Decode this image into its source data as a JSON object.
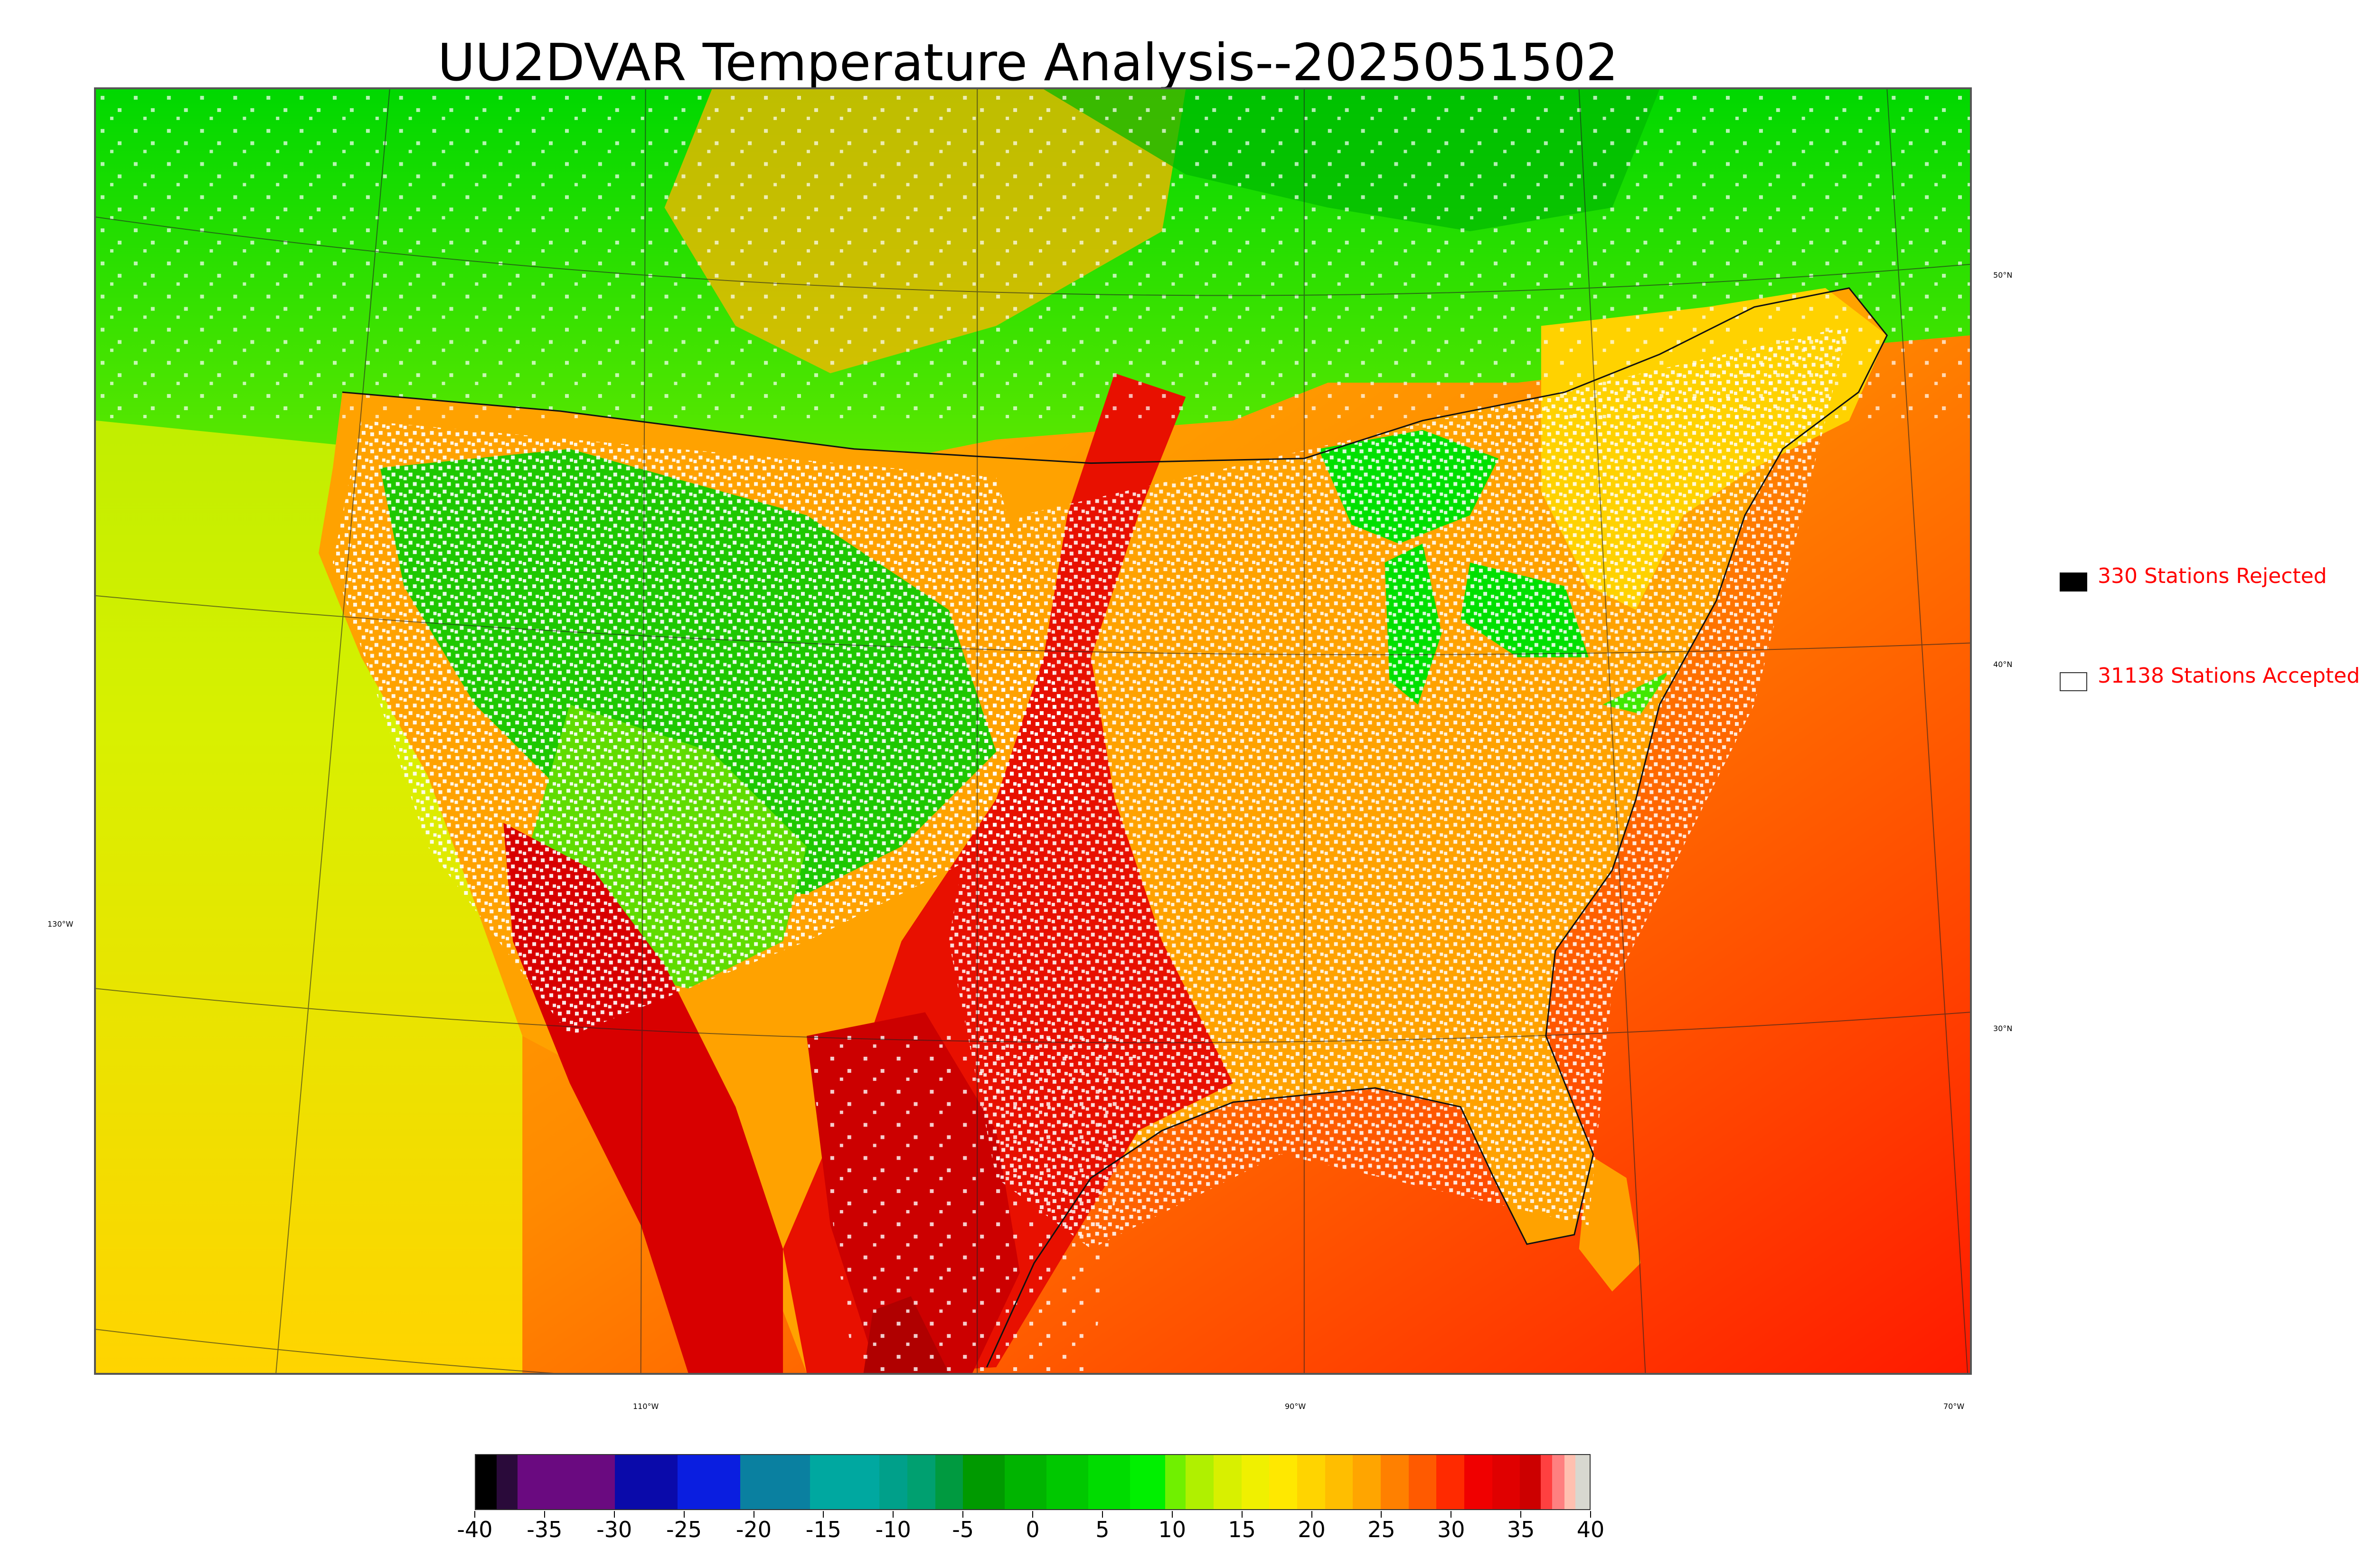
{
  "title": "UU2DVAR Temperature Analysis--2025051502",
  "map": {
    "latitude_labels": [
      "50°N",
      "40°N",
      "30°N"
    ],
    "longitude_labels": [
      "130°W",
      "110°W",
      "90°W",
      "70°W"
    ],
    "colors": {
      "ocean_warm": "#ff2a00",
      "land_hot": "#e80000",
      "land_warm": "#ffa500",
      "land_mild": "#ffe000",
      "land_cool": "#d4f000",
      "land_cold": "#00d800",
      "canada": "#22cc00",
      "accepted_station": "#ffffff",
      "rejected_station": "#000000"
    }
  },
  "legend": {
    "rejected": {
      "count": "330",
      "label": "330 Stations Rejected",
      "color": "#000000"
    },
    "accepted": {
      "count": "31138",
      "label": "31138 Stations Accepted",
      "color": "#ffffff"
    },
    "text_color": "#ff0000"
  },
  "colorbar": {
    "ticks": [
      "-40",
      "-35",
      "-30",
      "-25",
      "-20",
      "-15",
      "-10",
      "-5",
      "0",
      "5",
      "10",
      "15",
      "20",
      "25",
      "30",
      "35",
      "40"
    ],
    "range": [
      -40,
      40
    ],
    "segments": [
      {
        "from": -40,
        "to": -38.5,
        "color": "#000000"
      },
      {
        "from": -38.5,
        "to": -37,
        "color": "#2a0a3a"
      },
      {
        "from": -37,
        "to": -30,
        "color": "#6a0a80"
      },
      {
        "from": -30,
        "to": -25.5,
        "color": "#0a0aaa"
      },
      {
        "from": -25.5,
        "to": -21,
        "color": "#0a1ee0"
      },
      {
        "from": -21,
        "to": -16,
        "color": "#0a80a0"
      },
      {
        "from": -16,
        "to": -11,
        "color": "#00a8a0"
      },
      {
        "from": -11,
        "to": -9,
        "color": "#00a08a"
      },
      {
        "from": -9,
        "to": -7,
        "color": "#00a070"
      },
      {
        "from": -7,
        "to": -5,
        "color": "#009a40"
      },
      {
        "from": -5,
        "to": -2,
        "color": "#009a00"
      },
      {
        "from": -2,
        "to": 1,
        "color": "#00b400"
      },
      {
        "from": 1,
        "to": 4,
        "color": "#00c800"
      },
      {
        "from": 4,
        "to": 7,
        "color": "#00dc00"
      },
      {
        "from": 7,
        "to": 9.5,
        "color": "#00f000"
      },
      {
        "from": 9.5,
        "to": 11,
        "color": "#70f000"
      },
      {
        "from": 11,
        "to": 13,
        "color": "#b0f000"
      },
      {
        "from": 13,
        "to": 15,
        "color": "#d8f000"
      },
      {
        "from": 15,
        "to": 17,
        "color": "#f0f000"
      },
      {
        "from": 17,
        "to": 19,
        "color": "#ffe800"
      },
      {
        "from": 19,
        "to": 21,
        "color": "#ffd400"
      },
      {
        "from": 21,
        "to": 23,
        "color": "#ffbe00"
      },
      {
        "from": 23,
        "to": 25,
        "color": "#ffa500"
      },
      {
        "from": 25,
        "to": 27,
        "color": "#ff8000"
      },
      {
        "from": 27,
        "to": 29,
        "color": "#ff5a00"
      },
      {
        "from": 29,
        "to": 31,
        "color": "#ff2a00"
      },
      {
        "from": 31,
        "to": 33,
        "color": "#f00000"
      },
      {
        "from": 33,
        "to": 35,
        "color": "#e00000"
      },
      {
        "from": 35,
        "to": 36.5,
        "color": "#cc0000"
      },
      {
        "from": 36.5,
        "to": 37.3,
        "color": "#ff4040"
      },
      {
        "from": 37.3,
        "to": 38.2,
        "color": "#ff8080"
      },
      {
        "from": 38.2,
        "to": 39,
        "color": "#ffc0b0"
      },
      {
        "from": 39,
        "to": 40,
        "color": "#d8d8d0"
      }
    ]
  }
}
